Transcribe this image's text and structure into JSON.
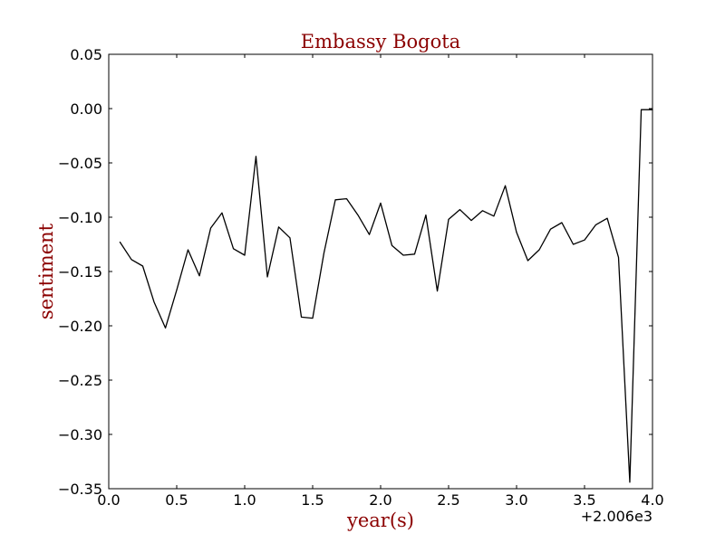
{
  "chart_data": {
    "type": "line",
    "title": "Embassy Bogota",
    "xlabel": "year(s)",
    "ylabel": "sentiment",
    "x_offset_label": "+2.006e3",
    "xlim": [
      0.0,
      4.0
    ],
    "ylim": [
      -0.35,
      0.05
    ],
    "x_ticks": [
      "0.0",
      "0.5",
      "1.0",
      "1.5",
      "2.0",
      "2.5",
      "3.0",
      "3.5",
      "4.0"
    ],
    "y_ticks": [
      "0.05",
      "0.00",
      "−0.05",
      "−0.10",
      "−0.15",
      "−0.20",
      "−0.25",
      "−0.30",
      "−0.35"
    ],
    "grid": false,
    "legend": "none",
    "colors": {
      "line": "#000000",
      "title": "#8b0000",
      "axis_label": "#8b0000"
    },
    "series": [
      {
        "x": [
          0.083,
          0.167,
          0.25,
          0.333,
          0.417,
          0.5,
          0.583,
          0.667,
          0.75,
          0.833,
          0.917,
          1.0,
          1.083,
          1.167,
          1.25,
          1.333,
          1.417,
          1.5,
          1.583,
          1.667,
          1.75,
          1.833,
          1.917,
          2.0,
          2.083,
          2.167,
          2.25,
          2.333,
          2.417,
          2.5,
          2.583,
          2.667,
          2.75,
          2.833,
          2.917,
          3.0,
          3.083,
          3.167,
          3.25,
          3.333,
          3.417,
          3.5,
          3.583,
          3.667,
          3.75,
          3.833,
          3.917,
          4.0
        ],
        "y": [
          -0.123,
          -0.139,
          -0.145,
          -0.178,
          -0.202,
          -0.167,
          -0.13,
          -0.154,
          -0.11,
          -0.096,
          -0.129,
          -0.135,
          -0.044,
          -0.155,
          -0.109,
          -0.119,
          -0.192,
          -0.193,
          -0.133,
          -0.084,
          -0.083,
          -0.098,
          -0.116,
          -0.087,
          -0.126,
          -0.135,
          -0.134,
          -0.098,
          -0.168,
          -0.102,
          -0.093,
          -0.103,
          -0.094,
          -0.099,
          -0.071,
          -0.114,
          -0.14,
          -0.13,
          -0.111,
          -0.105,
          -0.125,
          -0.121,
          -0.107,
          -0.101,
          -0.137,
          -0.344,
          -0.001,
          -0.001
        ]
      }
    ]
  }
}
